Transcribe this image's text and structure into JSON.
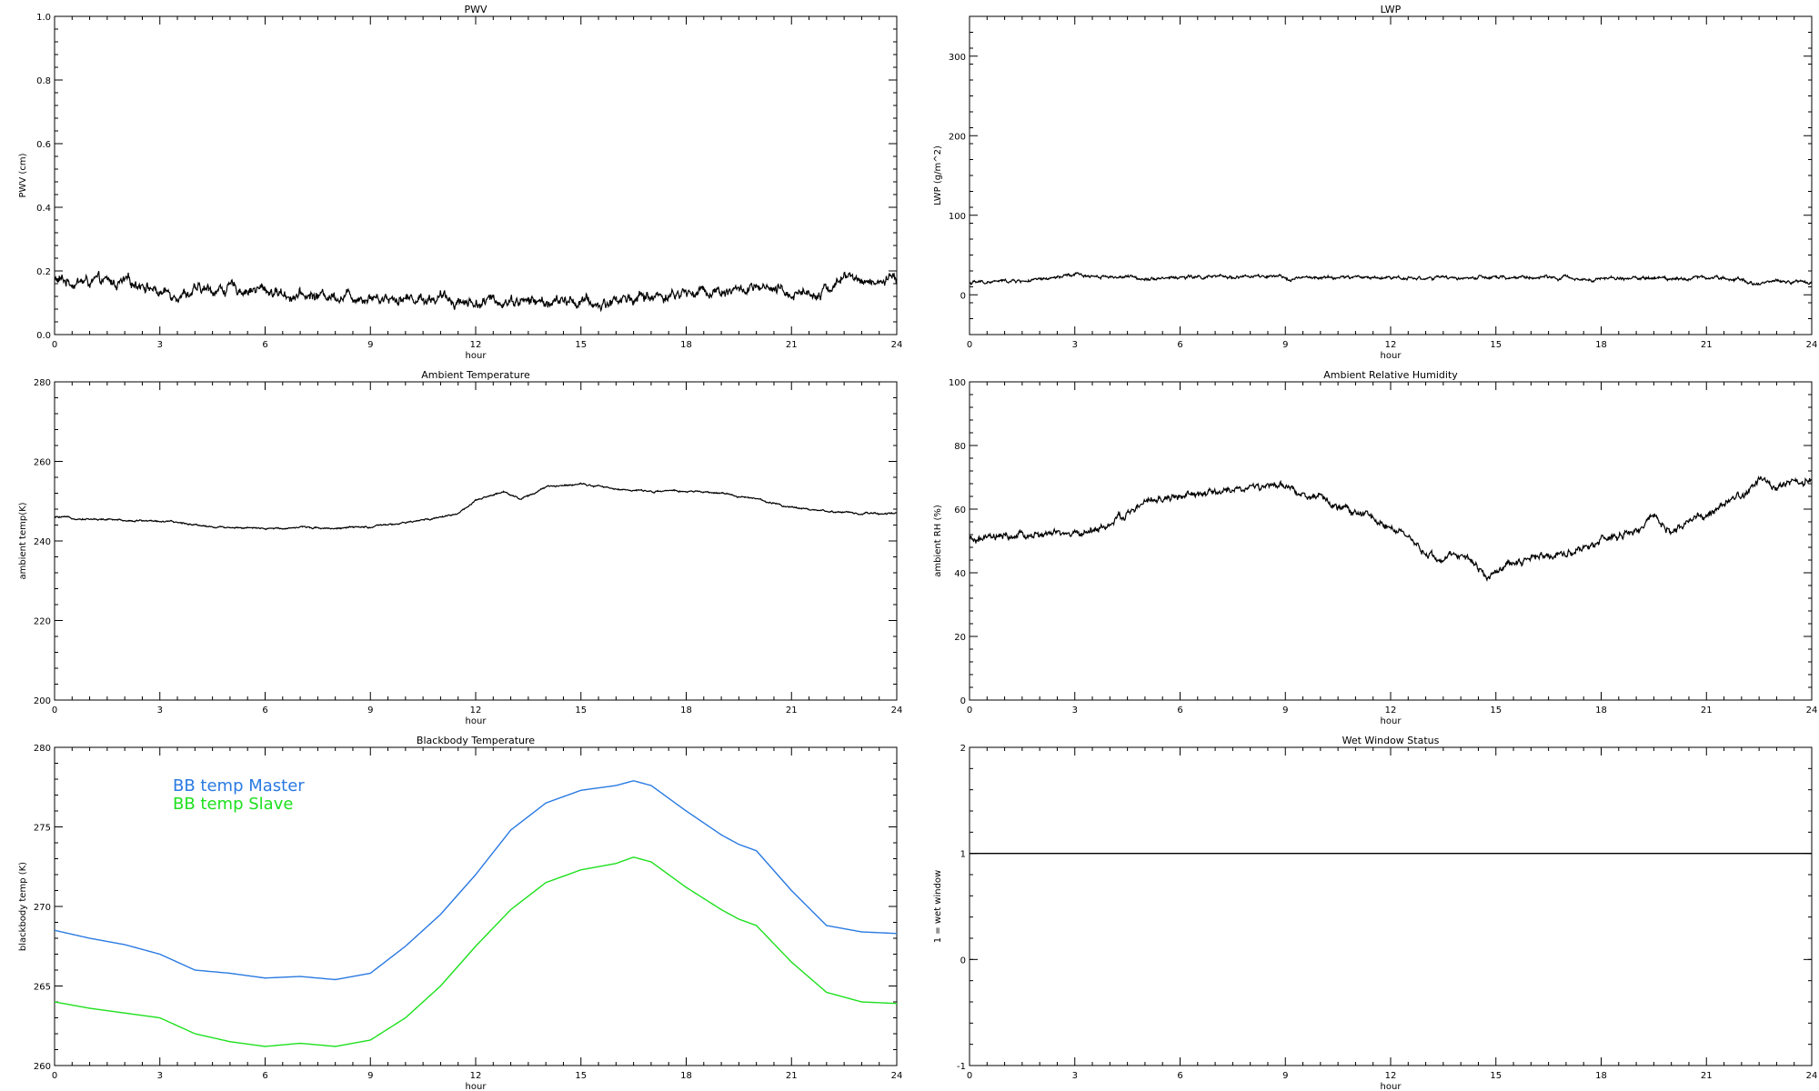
{
  "chart_data": [
    {
      "type": "line",
      "title": "PWV",
      "xlabel": "hour",
      "ylabel": "PWV (cm)",
      "xlim": [
        0,
        24
      ],
      "ylim": [
        0,
        1
      ],
      "xticks": [
        0,
        3,
        6,
        9,
        12,
        15,
        18,
        21,
        24
      ],
      "yticks": [
        0.0,
        0.2,
        0.4,
        0.6,
        0.8,
        1.0
      ],
      "ytick_labels": [
        "0.0",
        "0.2",
        "0.4",
        "0.6",
        "0.8",
        "1.0"
      ],
      "noise": 0.012,
      "series": [
        {
          "color": "#000000",
          "x": [
            0,
            1,
            2,
            2.5,
            3,
            4,
            5,
            6,
            7,
            8,
            9,
            10,
            11,
            12,
            13,
            14,
            15,
            15.5,
            16,
            17,
            18,
            19,
            20,
            21,
            22,
            22.5,
            23,
            24
          ],
          "y": [
            0.17,
            0.165,
            0.16,
            0.165,
            0.13,
            0.135,
            0.145,
            0.14,
            0.12,
            0.125,
            0.12,
            0.115,
            0.115,
            0.1,
            0.11,
            0.1,
            0.105,
            0.09,
            0.11,
            0.12,
            0.13,
            0.14,
            0.14,
            0.13,
            0.14,
            0.18,
            0.17,
            0.165
          ]
        }
      ]
    },
    {
      "type": "line",
      "title": "LWP",
      "xlabel": "hour",
      "ylabel": "LWP (g/m^2)",
      "xlim": [
        0,
        24
      ],
      "ylim": [
        -50,
        350
      ],
      "xticks": [
        0,
        3,
        6,
        9,
        12,
        15,
        18,
        21,
        24
      ],
      "yticks": [
        0,
        100,
        200,
        300
      ],
      "ytick_labels": [
        "0",
        "100",
        "200",
        "300"
      ],
      "noise": 1.5,
      "series": [
        {
          "color": "#000000",
          "x": [
            0,
            1,
            2,
            3,
            4,
            5,
            6,
            7,
            8,
            9,
            10,
            11,
            12,
            13,
            14,
            15,
            16,
            17,
            18,
            19,
            20,
            21,
            22,
            22.5,
            23,
            24
          ],
          "y": [
            15,
            17,
            18,
            25,
            23,
            21,
            22,
            22,
            23,
            21,
            21,
            22,
            22,
            21,
            21,
            21,
            22,
            21,
            20,
            21,
            21,
            22,
            20,
            14,
            18,
            15
          ]
        }
      ]
    },
    {
      "type": "line",
      "title": "Ambient Temperature",
      "xlabel": "hour",
      "ylabel": "ambient temp(K)",
      "xlim": [
        0,
        24
      ],
      "ylim": [
        200,
        280
      ],
      "xticks": [
        0,
        3,
        6,
        9,
        12,
        15,
        18,
        21,
        24
      ],
      "yticks": [
        200,
        220,
        240,
        260,
        280
      ],
      "ytick_labels": [
        "200",
        "220",
        "240",
        "260",
        "280"
      ],
      "noise": 0.15,
      "series": [
        {
          "color": "#000000",
          "x": [
            0,
            1,
            2,
            3,
            4,
            4.5,
            5,
            6,
            7,
            8,
            9,
            10,
            11,
            11.5,
            12,
            12.8,
            13.3,
            14,
            15,
            16,
            17,
            18,
            19,
            20,
            21,
            22,
            23,
            24
          ],
          "y": [
            246,
            245.5,
            245.2,
            245,
            244.2,
            243.5,
            243.5,
            243,
            243.5,
            243.2,
            243.5,
            244.5,
            246,
            247,
            250,
            252.5,
            250.5,
            253.5,
            254.5,
            253,
            252.5,
            252.5,
            252,
            250.5,
            248.5,
            247.5,
            246.8,
            247
          ]
        }
      ]
    },
    {
      "type": "line",
      "title": "Ambient Relative Humidity",
      "xlabel": "hour",
      "ylabel": "ambient RH (%)",
      "xlim": [
        0,
        24
      ],
      "ylim": [
        0,
        100
      ],
      "xticks": [
        0,
        3,
        6,
        9,
        12,
        15,
        18,
        21,
        24
      ],
      "yticks": [
        0,
        20,
        40,
        60,
        80,
        100
      ],
      "ytick_labels": [
        "0",
        "20",
        "40",
        "60",
        "80",
        "100"
      ],
      "noise": 0.8,
      "series": [
        {
          "color": "#000000",
          "x": [
            0,
            1,
            2,
            3,
            4,
            5,
            6,
            7,
            8,
            9,
            10,
            11,
            12,
            12.5,
            13,
            13.5,
            14,
            14.5,
            14.8,
            15,
            16,
            17,
            18,
            19,
            19.5,
            20,
            21,
            22,
            22.5,
            23,
            24
          ],
          "y": [
            50,
            51,
            52,
            52,
            55,
            62,
            64,
            65,
            67,
            67,
            63,
            59,
            55,
            50,
            46,
            44,
            46,
            42,
            38,
            41,
            45,
            46,
            50,
            53,
            57,
            53,
            58,
            64,
            70,
            66,
            70
          ]
        }
      ]
    },
    {
      "type": "line",
      "title": "Blackbody Temperature",
      "xlabel": "hour",
      "ylabel": "blackbody temp (K)",
      "xlim": [
        0,
        24
      ],
      "ylim": [
        260,
        280
      ],
      "xticks": [
        0,
        3,
        6,
        9,
        12,
        15,
        18,
        21,
        24
      ],
      "yticks": [
        260,
        265,
        270,
        275,
        280
      ],
      "ytick_labels": [
        "260",
        "265",
        "270",
        "275",
        "280"
      ],
      "noise": 0,
      "legend_placement": "top-left",
      "series": [
        {
          "name": "BB temp Master",
          "color": "#2a7ae2",
          "x": [
            0,
            1,
            2,
            3,
            4,
            5,
            6,
            7,
            8,
            9,
            10,
            11,
            12,
            13,
            14,
            15,
            16,
            16.5,
            17,
            18,
            19,
            19.5,
            20,
            21,
            22,
            23,
            24
          ],
          "y": [
            268.5,
            268,
            267.6,
            267,
            266,
            265.8,
            265.5,
            265.6,
            265.4,
            265.8,
            267.5,
            269.5,
            272,
            274.8,
            276.5,
            277.3,
            277.6,
            277.9,
            277.6,
            276,
            274.5,
            273.9,
            273.5,
            271,
            268.8,
            268.4,
            268.3
          ]
        },
        {
          "name": "BB temp Slave",
          "color": "#1ee01e",
          "x": [
            0,
            1,
            2,
            3,
            4,
            5,
            6,
            7,
            8,
            9,
            10,
            11,
            12,
            13,
            14,
            15,
            16,
            16.5,
            17,
            18,
            19,
            19.5,
            20,
            21,
            22,
            23,
            24
          ],
          "y": [
            264,
            263.6,
            263.3,
            263,
            262,
            261.5,
            261.2,
            261.4,
            261.2,
            261.6,
            263,
            265,
            267.5,
            269.8,
            271.5,
            272.3,
            272.7,
            273.1,
            272.8,
            271.2,
            269.8,
            269.2,
            268.8,
            266.5,
            264.6,
            264,
            263.9
          ]
        }
      ]
    },
    {
      "type": "line",
      "title": "Wet Window Status",
      "xlabel": "hour",
      "ylabel": "1 = wet window",
      "xlim": [
        0,
        24
      ],
      "ylim": [
        -1,
        2
      ],
      "xticks": [
        0,
        3,
        6,
        9,
        12,
        15,
        18,
        21,
        24
      ],
      "yticks": [
        -1,
        0,
        1,
        2
      ],
      "ytick_labels": [
        "-1",
        "0",
        "1",
        "2"
      ],
      "noise": 0,
      "series": [
        {
          "color": "#000000",
          "x": [
            0,
            24
          ],
          "y": [
            1,
            1
          ]
        }
      ]
    }
  ]
}
